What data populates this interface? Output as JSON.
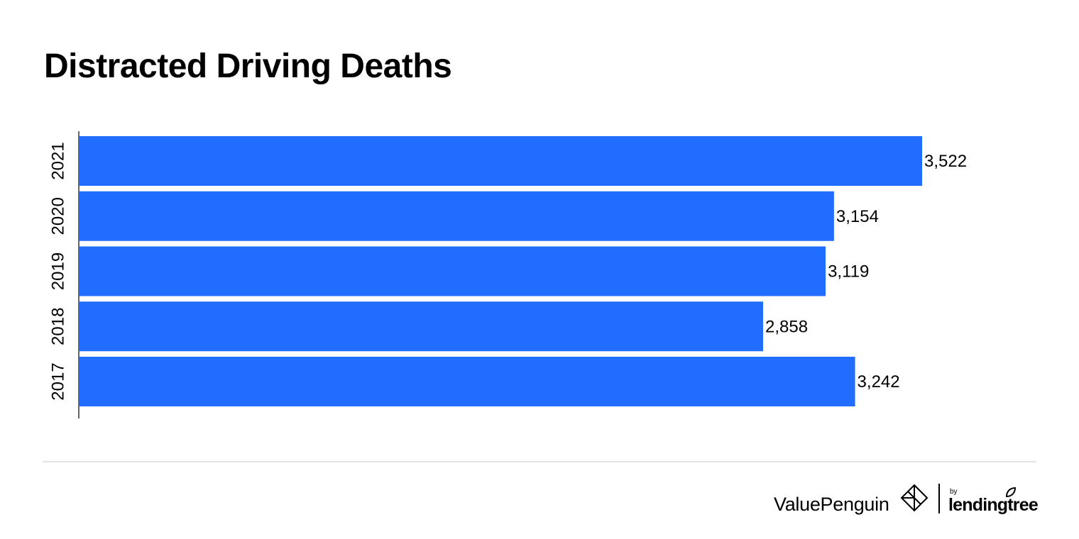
{
  "chart_data": {
    "type": "bar",
    "orientation": "horizontal",
    "title": "Distracted Driving Deaths",
    "categories": [
      "2021",
      "2020",
      "2019",
      "2018",
      "2017"
    ],
    "values": [
      3522,
      3154,
      3119,
      2858,
      3242
    ],
    "value_labels": [
      "3,522",
      "3,154",
      "3,119",
      "2,858",
      "3,242"
    ],
    "xlim": [
      0,
      3522
    ],
    "grid": false,
    "legend": "none",
    "bar_color": "#206dff"
  },
  "footer": {
    "brand": "ValuePenguin",
    "by": "by",
    "partner": "lendingtree"
  },
  "colors": {
    "bar": "#206dff",
    "text": "#000000",
    "axis": "#666666",
    "divider": "#e3e3e3"
  }
}
